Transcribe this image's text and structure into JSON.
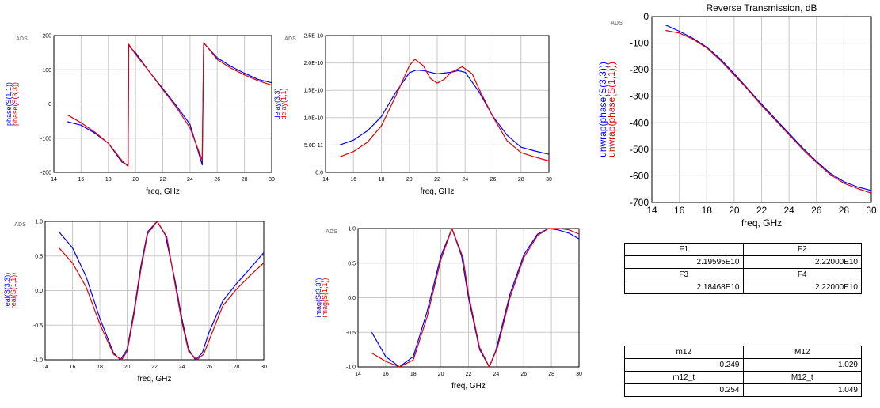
{
  "chart_data": [
    {
      "type": "line",
      "ads_label": "ADS",
      "xlabel": "freq, GHz",
      "xlim": [
        14,
        30
      ],
      "xticks": [
        14,
        16,
        18,
        20,
        22,
        24,
        26,
        28,
        30
      ],
      "ylim": [
        -200,
        200
      ],
      "yticks": [
        -200,
        -100,
        0,
        100,
        200
      ],
      "ytick_labels": [
        "-200",
        "-100",
        "0",
        "100",
        "200"
      ],
      "ylabel_blue": "phase(S(1,1))",
      "ylabel_red": "phase(S(3,3))",
      "series": [
        {
          "name": "phase(S(1,1))",
          "color": "#0000ff",
          "points": [
            [
              15,
              -52
            ],
            [
              16,
              -62
            ],
            [
              17,
              -85
            ],
            [
              18,
              -115
            ],
            [
              19,
              -170
            ],
            [
              19.45,
              -178
            ],
            [
              19.5,
              170
            ],
            [
              20,
              150
            ],
            [
              21,
              95
            ],
            [
              22,
              45
            ],
            [
              23,
              -5
            ],
            [
              24,
              -60
            ],
            [
              24.9,
              -178
            ],
            [
              25,
              178
            ],
            [
              26,
              135
            ],
            [
              27,
              110
            ],
            [
              28,
              90
            ],
            [
              29,
              72
            ],
            [
              30,
              62
            ]
          ]
        },
        {
          "name": "phase(S(3,3))",
          "color": "#e00000",
          "points": [
            [
              15,
              -32
            ],
            [
              16,
              -55
            ],
            [
              17,
              -82
            ],
            [
              18,
              -115
            ],
            [
              19,
              -165
            ],
            [
              19.45,
              -183
            ],
            [
              19.5,
              175
            ],
            [
              20,
              145
            ],
            [
              21,
              95
            ],
            [
              22,
              42
            ],
            [
              23,
              -10
            ],
            [
              24,
              -70
            ],
            [
              24.9,
              -165
            ],
            [
              25,
              180
            ],
            [
              26,
              130
            ],
            [
              27,
              105
            ],
            [
              28,
              85
            ],
            [
              29,
              68
            ],
            [
              30,
              55
            ]
          ]
        }
      ]
    },
    {
      "type": "line",
      "ads_label": "ADS",
      "xlabel": "freq, GHz",
      "xlim": [
        14,
        30
      ],
      "xticks": [
        14,
        16,
        18,
        20,
        22,
        24,
        26,
        28,
        30
      ],
      "ylim": [
        0,
        2.5e-10
      ],
      "yticks": [
        0,
        5e-11,
        1e-10,
        1.5e-10,
        2e-10,
        2.5e-10
      ],
      "ytick_labels": [
        "0.0",
        "5.0E-11",
        "1.0E-10",
        "1.5E-10",
        "2.0E-10",
        "2.5E-10"
      ],
      "ylabel_blue": "delay(3,3)",
      "ylabel_red": "delay(1,1)",
      "series": [
        {
          "name": "delay(3,3)",
          "color": "#0000ff",
          "points": [
            [
              15,
              5e-11
            ],
            [
              16,
              5.9e-11
            ],
            [
              17,
              7.6e-11
            ],
            [
              18,
              1.02e-10
            ],
            [
              19,
              1.45e-10
            ],
            [
              20,
              1.82e-10
            ],
            [
              20.5,
              1.87e-10
            ],
            [
              21,
              1.86e-10
            ],
            [
              22,
              1.8e-10
            ],
            [
              23,
              1.83e-10
            ],
            [
              23.5,
              1.86e-10
            ],
            [
              24,
              1.83e-10
            ],
            [
              25,
              1.47e-10
            ],
            [
              26,
              1.02e-10
            ],
            [
              27,
              6.8e-11
            ],
            [
              28,
              4.6e-11
            ],
            [
              29,
              3.9e-11
            ],
            [
              30,
              3.3e-11
            ]
          ]
        },
        {
          "name": "delay(1,1)",
          "color": "#e00000",
          "points": [
            [
              15,
              2.8e-11
            ],
            [
              16,
              3.8e-11
            ],
            [
              17,
              5.5e-11
            ],
            [
              18,
              8.5e-11
            ],
            [
              19,
              1.38e-10
            ],
            [
              20,
              1.95e-10
            ],
            [
              20.4,
              2.07e-10
            ],
            [
              21,
              1.95e-10
            ],
            [
              21.5,
              1.72e-10
            ],
            [
              22,
              1.63e-10
            ],
            [
              22.5,
              1.7e-10
            ],
            [
              23,
              1.83e-10
            ],
            [
              23.8,
              1.93e-10
            ],
            [
              24.5,
              1.8e-10
            ],
            [
              25,
              1.52e-10
            ],
            [
              26,
              1.01e-10
            ],
            [
              27,
              5.8e-11
            ],
            [
              28,
              3.6e-11
            ],
            [
              29,
              2.8e-11
            ],
            [
              30,
              2.1e-11
            ]
          ]
        }
      ]
    },
    {
      "type": "line",
      "ads_label": "ADS",
      "title": "Reverse Transmission, dB",
      "xlabel": "freq, GHz",
      "xlim": [
        14,
        30
      ],
      "xticks": [
        14,
        16,
        18,
        20,
        22,
        24,
        26,
        28,
        30
      ],
      "ylim": [
        -700,
        0
      ],
      "yticks": [
        -700,
        -600,
        -500,
        -400,
        -300,
        -200,
        -100,
        0
      ],
      "ytick_labels": [
        "-700",
        "-600",
        "-500",
        "-400",
        "-300",
        "-200",
        "-100",
        "0"
      ],
      "ylabel_blue": "unwrap(phase(S(3,3)))",
      "ylabel_red": "unwrap(phase(S(1,1)))",
      "series": [
        {
          "name": "unwrap(phase(S(3,3)))",
          "color": "#0000ff",
          "points": [
            [
              15,
              -32
            ],
            [
              16,
              -55
            ],
            [
              17,
              -82
            ],
            [
              18,
              -115
            ],
            [
              19,
              -160
            ],
            [
              20,
              -215
            ],
            [
              21,
              -272
            ],
            [
              22,
              -330
            ],
            [
              23,
              -385
            ],
            [
              24,
              -440
            ],
            [
              25,
              -495
            ],
            [
              26,
              -545
            ],
            [
              27,
              -590
            ],
            [
              28,
              -622
            ],
            [
              29,
              -642
            ],
            [
              30,
              -655
            ]
          ]
        },
        {
          "name": "unwrap(phase(S(1,1)))",
          "color": "#e00000",
          "points": [
            [
              15,
              -52
            ],
            [
              16,
              -62
            ],
            [
              17,
              -85
            ],
            [
              18,
              -118
            ],
            [
              19,
              -165
            ],
            [
              20,
              -220
            ],
            [
              21,
              -275
            ],
            [
              22,
              -335
            ],
            [
              23,
              -390
            ],
            [
              24,
              -445
            ],
            [
              25,
              -500
            ],
            [
              26,
              -550
            ],
            [
              27,
              -595
            ],
            [
              28,
              -628
            ],
            [
              29,
              -648
            ],
            [
              30,
              -665
            ]
          ]
        }
      ]
    },
    {
      "type": "line",
      "ads_label": "ADS",
      "xlabel": "freq, GHz",
      "xlim": [
        14,
        30
      ],
      "xticks": [
        14,
        16,
        18,
        20,
        22,
        24,
        26,
        28,
        30
      ],
      "ylim": [
        -1,
        1
      ],
      "yticks": [
        -1,
        -0.5,
        0,
        0.5,
        1
      ],
      "ytick_labels": [
        "-1.0",
        "-0.5",
        "0.0",
        "0.5",
        "1.0"
      ],
      "ylabel_blue": "real(S(3,3))",
      "ylabel_red": "real(S(1,1))",
      "series": [
        {
          "name": "real(S(3,3))",
          "color": "#0000ff",
          "points": [
            [
              15,
              0.85
            ],
            [
              16,
              0.62
            ],
            [
              17,
              0.2
            ],
            [
              18,
              -0.4
            ],
            [
              19,
              -0.9
            ],
            [
              19.5,
              -1.0
            ],
            [
              20,
              -0.85
            ],
            [
              20.5,
              -0.3
            ],
            [
              21,
              0.35
            ],
            [
              21.5,
              0.85
            ],
            [
              22.2,
              1.0
            ],
            [
              22.8,
              0.8
            ],
            [
              23.5,
              0.15
            ],
            [
              24,
              -0.4
            ],
            [
              24.5,
              -0.85
            ],
            [
              25,
              -1.0
            ],
            [
              25.5,
              -0.9
            ],
            [
              26,
              -0.6
            ],
            [
              27,
              -0.15
            ],
            [
              28,
              0.1
            ],
            [
              29,
              0.32
            ],
            [
              30,
              0.55
            ]
          ]
        },
        {
          "name": "real(S(1,1))",
          "color": "#e00000",
          "points": [
            [
              15,
              0.62
            ],
            [
              16,
              0.4
            ],
            [
              17,
              0.05
            ],
            [
              18,
              -0.48
            ],
            [
              19,
              -0.92
            ],
            [
              19.6,
              -1.0
            ],
            [
              20,
              -0.88
            ],
            [
              20.5,
              -0.35
            ],
            [
              21,
              0.3
            ],
            [
              21.5,
              0.82
            ],
            [
              22.2,
              1.0
            ],
            [
              22.9,
              0.78
            ],
            [
              23.5,
              0.1
            ],
            [
              24,
              -0.45
            ],
            [
              24.5,
              -0.88
            ],
            [
              25.1,
              -1.0
            ],
            [
              25.6,
              -0.92
            ],
            [
              26,
              -0.72
            ],
            [
              27,
              -0.22
            ],
            [
              28,
              0.02
            ],
            [
              29,
              0.22
            ],
            [
              30,
              0.4
            ]
          ]
        }
      ]
    },
    {
      "type": "line",
      "ads_label": "ADS",
      "xlabel": "freq, GHz",
      "xlim": [
        14,
        30
      ],
      "xticks": [
        14,
        16,
        18,
        20,
        22,
        24,
        26,
        28,
        30
      ],
      "ylim": [
        -1,
        1
      ],
      "yticks": [
        -1,
        -0.5,
        0,
        0.5,
        1
      ],
      "ytick_labels": [
        "-1.0",
        "-0.5",
        "0.0",
        "0.5",
        "1.0"
      ],
      "ylabel_blue": "imag(S(3,3))",
      "ylabel_red": "imag(S(1,1))",
      "series": [
        {
          "name": "imag(S(3,3))",
          "color": "#0000ff",
          "points": [
            [
              15,
              -0.5
            ],
            [
              16,
              -0.85
            ],
            [
              17,
              -1.0
            ],
            [
              18,
              -0.85
            ],
            [
              19,
              -0.2
            ],
            [
              20,
              0.6
            ],
            [
              20.8,
              1.0
            ],
            [
              21.5,
              0.6
            ],
            [
              22,
              0.0
            ],
            [
              22.8,
              -0.75
            ],
            [
              23.5,
              -1.0
            ],
            [
              24,
              -0.75
            ],
            [
              25,
              0.05
            ],
            [
              26,
              0.62
            ],
            [
              27,
              0.92
            ],
            [
              27.8,
              1.0
            ],
            [
              28.5,
              0.98
            ],
            [
              29.3,
              0.93
            ],
            [
              30,
              0.85
            ]
          ]
        },
        {
          "name": "imag(S(1,1))",
          "color": "#e00000",
          "points": [
            [
              15,
              -0.8
            ],
            [
              16,
              -0.92
            ],
            [
              17,
              -1.0
            ],
            [
              18,
              -0.9
            ],
            [
              19,
              -0.28
            ],
            [
              20,
              0.55
            ],
            [
              20.8,
              1.0
            ],
            [
              21.6,
              0.58
            ],
            [
              22,
              0.05
            ],
            [
              22.8,
              -0.72
            ],
            [
              23.5,
              -1.0
            ],
            [
              24.1,
              -0.72
            ],
            [
              25,
              0.0
            ],
            [
              26,
              0.58
            ],
            [
              27,
              0.9
            ],
            [
              27.8,
              1.0
            ],
            [
              28.6,
              1.0
            ],
            [
              29.3,
              0.98
            ],
            [
              30,
              0.92
            ]
          ]
        }
      ]
    }
  ],
  "marker_tables": [
    {
      "rows": [
        {
          "headers": [
            "F1",
            "F2"
          ],
          "values": [
            "2.19595E10",
            "2.22000E10"
          ]
        },
        {
          "headers": [
            "F3",
            "F4"
          ],
          "values": [
            "2.18468E10",
            "2.22000E10"
          ]
        }
      ]
    },
    {
      "rows": [
        {
          "headers": [
            "m12",
            "M12"
          ],
          "values": [
            "0.249",
            "1.029"
          ]
        },
        {
          "headers": [
            "m12_t",
            "M12_t"
          ],
          "values": [
            "0.254",
            "1.049"
          ]
        }
      ]
    }
  ]
}
